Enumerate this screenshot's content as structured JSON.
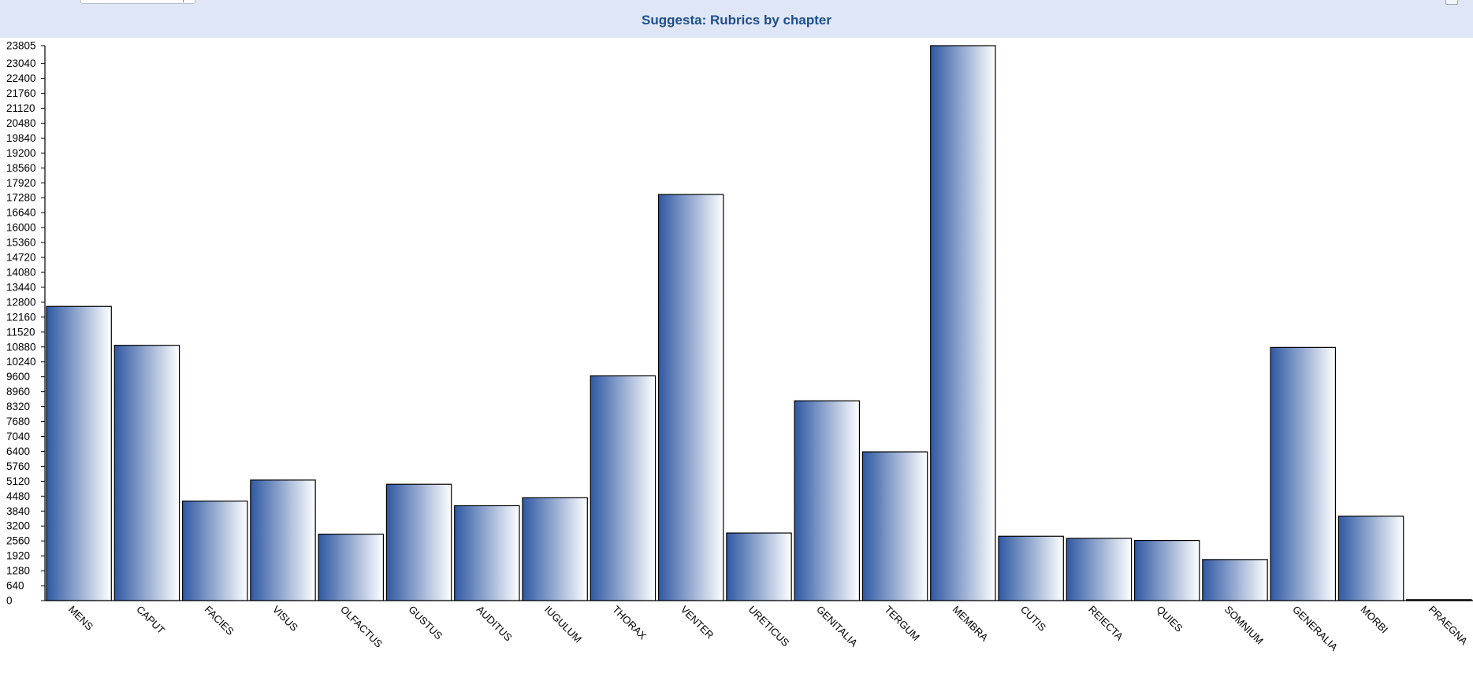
{
  "header": {
    "control_label": "",
    "input_value": ""
  },
  "chart_data": {
    "type": "bar",
    "title": "Suggesta: Rubrics by chapter",
    "xlabel": "",
    "ylabel": "",
    "categories": [
      "MENS",
      "CAPUT",
      "FACIES",
      "VISUS",
      "OLFACTUS",
      "GUSTUS",
      "AUDITUS",
      "IUGULUM",
      "THORAX",
      "VENTER",
      "URETICUS",
      "GENITALIA",
      "TERGUM",
      "MEMBRA",
      "CUTIS",
      "REIECTA",
      "QUIES",
      "SOMNIUM",
      "GENERALIA",
      "MORBI",
      "PRAEGNA"
    ],
    "values": [
      12620,
      10950,
      4270,
      5170,
      2850,
      4990,
      4070,
      4410,
      9640,
      17420,
      2900,
      8570,
      6380,
      23805,
      2760,
      2670,
      2580,
      1760,
      10860,
      3620,
      40
    ],
    "ylim": [
      0,
      23805
    ],
    "yticks": [
      0,
      640,
      1280,
      1920,
      2560,
      3200,
      3840,
      4480,
      5120,
      5760,
      6400,
      7040,
      7680,
      8320,
      8960,
      9600,
      10240,
      10880,
      11520,
      12160,
      12800,
      13440,
      14080,
      14720,
      15360,
      16000,
      16640,
      17280,
      17920,
      18560,
      19200,
      19840,
      20480,
      21120,
      21760,
      22400,
      23040,
      23805
    ],
    "grid": false,
    "legend": "none",
    "colors": {
      "bar_dark": "#2f58a3",
      "bar_light": "#ffffff",
      "bar_border": "#000000",
      "title": "#1f4e8c",
      "header_bg": "#dfe6f5"
    }
  }
}
